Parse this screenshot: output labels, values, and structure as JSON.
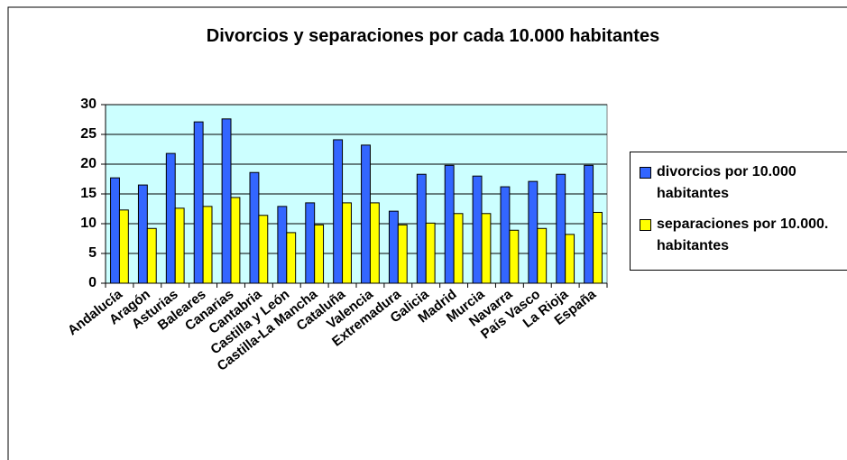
{
  "chart_data": {
    "type": "bar",
    "title": "Divorcios y separaciones por cada 10.000 habitantes",
    "categories": [
      "Andalucía",
      "Aragón",
      "Asturias",
      "Baleares",
      "Canarias",
      "Cantabria",
      "Castilla y León",
      "Castilla-La Mancha",
      "Cataluña",
      "Valencia",
      "Extremadura",
      "Galicia",
      "Madrid",
      "Murcia",
      "Navarra",
      "País Vasco",
      "La Rioja",
      "España"
    ],
    "series": [
      {
        "name": "divorcios por 10.000 habitantes",
        "color": "#3366ff",
        "values": [
          17.7,
          16.5,
          21.8,
          27.1,
          27.6,
          18.6,
          12.9,
          13.5,
          24.1,
          23.2,
          12.1,
          18.3,
          19.8,
          18.0,
          16.2,
          17.1,
          18.3,
          19.8
        ]
      },
      {
        "name": "separaciones por 10.000. habitantes",
        "color": "#ffff00",
        "values": [
          12.3,
          9.2,
          12.6,
          12.9,
          14.4,
          11.4,
          8.5,
          9.8,
          13.5,
          13.5,
          9.8,
          10.1,
          11.7,
          11.7,
          8.9,
          9.2,
          8.2,
          11.9
        ]
      }
    ],
    "ylim": [
      0,
      30
    ],
    "yticks": [
      0,
      5,
      10,
      15,
      20,
      25,
      30
    ],
    "grid": true,
    "plot_background": "#ccffff",
    "legend": "right"
  }
}
